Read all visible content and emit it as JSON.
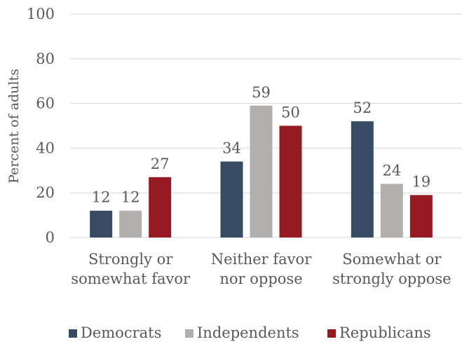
{
  "chart_data": {
    "type": "bar",
    "categories": [
      [
        "Strongly or",
        "somewhat favor"
      ],
      [
        "Neither favor",
        "nor oppose"
      ],
      [
        "Somewhat or",
        "strongly oppose"
      ]
    ],
    "series": [
      {
        "name": "Democrats",
        "color": "#374b65",
        "values": [
          12,
          34,
          52
        ]
      },
      {
        "name": "Independents",
        "color": "#b3afae",
        "values": [
          12,
          59,
          24
        ]
      },
      {
        "name": "Republicans",
        "color": "#951a22",
        "values": [
          27,
          50,
          19
        ]
      }
    ],
    "ylabel": "Percent of adults",
    "xlabel": "",
    "ylim": [
      0,
      100
    ],
    "yticks": [
      0,
      20,
      40,
      60,
      80,
      100
    ],
    "grid": true,
    "legend_position": "bottom"
  }
}
